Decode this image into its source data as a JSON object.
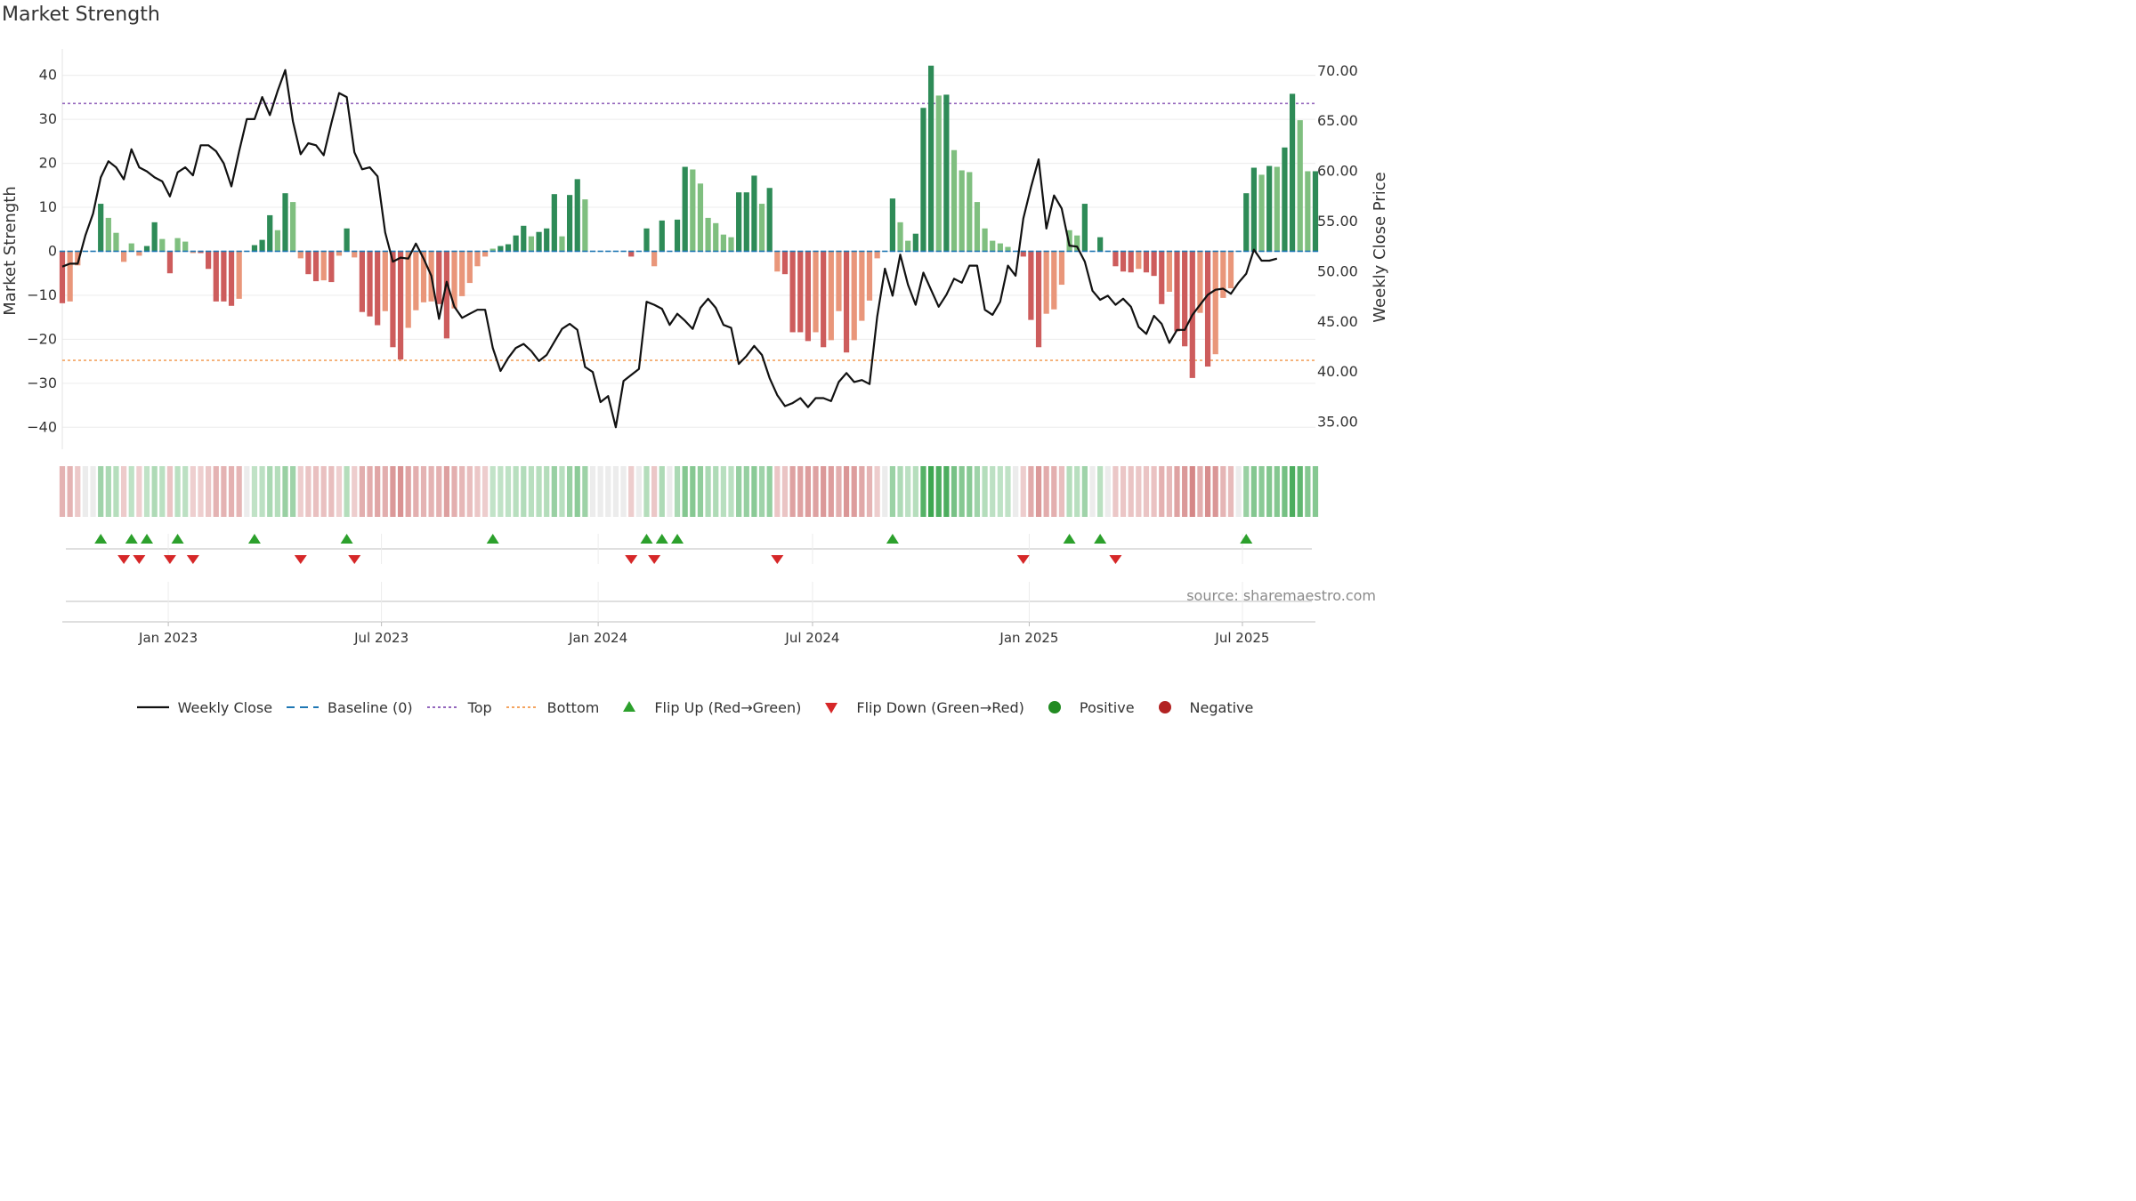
{
  "title": "Market Strength",
  "source": "source: sharemaestro.com",
  "colors": {
    "pos_dark": "#2e8b57",
    "pos_light": "#7fbf7f",
    "neg_dark": "#cd5c5c",
    "neg_light": "#e9967a",
    "baseline": "#1f77b4",
    "top": "#9467bd",
    "bottom": "#f4a460",
    "close": "#111111",
    "flip_up": "#2ca02c",
    "flip_down": "#d62728",
    "positive": "#228b22",
    "negative": "#b22222"
  },
  "legend": [
    {
      "key": "close",
      "label": "Weekly Close"
    },
    {
      "key": "baseline",
      "label": "Baseline (0)"
    },
    {
      "key": "top",
      "label": "Top"
    },
    {
      "key": "bottom",
      "label": "Bottom"
    },
    {
      "key": "flip_up",
      "label": "Flip Up (Red→Green)"
    },
    {
      "key": "flip_down",
      "label": "Flip Down (Green→Red)"
    },
    {
      "key": "positive",
      "label": "Positive"
    },
    {
      "key": "negative",
      "label": "Negative"
    }
  ],
  "chart_data": {
    "type": "bar",
    "title": "Market Strength",
    "ylabel": "Market Strength",
    "ylabel_right": "Weekly Close Price",
    "ylim": [
      -45,
      46
    ],
    "ylim_right": [
      32.3,
      72.2
    ],
    "yticks": [
      -40,
      -30,
      -20,
      -10,
      0,
      10,
      20,
      30,
      40
    ],
    "yticks_right": [
      "35.00",
      "40.00",
      "45.00",
      "50.00",
      "55.00",
      "60.00",
      "65.00",
      "70.00"
    ],
    "x_start": "2022-10-03",
    "x_end": "2025-09-01",
    "xtick_labels": [
      {
        "label": "Jan 2023",
        "date": "2023-01-01"
      },
      {
        "label": "Jul 2023",
        "date": "2023-07-01"
      },
      {
        "label": "Jan 2024",
        "date": "2024-01-01"
      },
      {
        "label": "Jul 2024",
        "date": "2024-07-01"
      },
      {
        "label": "Jan 2025",
        "date": "2025-01-01"
      },
      {
        "label": "Jul 2025",
        "date": "2025-07-01"
      }
    ],
    "top_threshold": 33.6,
    "bottom_threshold": -24.8,
    "strength": [
      -11.8,
      -11.4,
      -3.2,
      0,
      0,
      10.8,
      7.6,
      4.2,
      -2.4,
      1.8,
      -1,
      1.2,
      6.6,
      2.8,
      -5,
      3,
      2.2,
      -0.4,
      -0.4,
      -4,
      -11.4,
      -11.4,
      -12.4,
      -10.8,
      0,
      1.4,
      2.6,
      8.2,
      4.8,
      13.2,
      11.2,
      -1.6,
      -5.2,
      -6.8,
      -6.6,
      -7,
      -1,
      5.2,
      -1.4,
      -13.8,
      -14.8,
      -16.8,
      -13.6,
      -21.8,
      -24.6,
      -17.4,
      -13.4,
      -11.6,
      -11.4,
      -12,
      -19.8,
      -13,
      -10.2,
      -7.2,
      -3.4,
      -1.2,
      0.6,
      1.2,
      1.6,
      3.6,
      5.8,
      3.4,
      4.4,
      5.2,
      13,
      3.4,
      12.8,
      16.4,
      11.8,
      0,
      0,
      0,
      0,
      0,
      -1.2,
      0,
      5.2,
      -3.4,
      7,
      0,
      7.2,
      19.2,
      18.6,
      15.4,
      7.6,
      6.4,
      3.8,
      3.2,
      13.4,
      13.4,
      17.2,
      10.8,
      14.4,
      -4.6,
      -5.2,
      -18.4,
      -18.4,
      -20.4,
      -18.4,
      -21.8,
      -20.2,
      -13.6,
      -23,
      -20.2,
      -15.8,
      -11.2,
      -1.6,
      0,
      12,
      6.6,
      2.4,
      4,
      32.6,
      42.2,
      35.4,
      35.6,
      23,
      18.4,
      18,
      11.2,
      5.2,
      2.4,
      1.8,
      1,
      0,
      -1.2,
      -15.6,
      -21.8,
      -14.2,
      -13.2,
      -7.6,
      4.8,
      3.6,
      10.8,
      0,
      3.2,
      0,
      -3.4,
      -4.6,
      -4.8,
      -4,
      -4.8,
      -5.6,
      -12,
      -9.2,
      -18.2,
      -21.6,
      -28.8,
      -14,
      -26.2,
      -23.4,
      -10.6,
      -8.4,
      0,
      13.2,
      19,
      17.4,
      19.4,
      19.2,
      23.6,
      35.8,
      29.8,
      18.2,
      18.2
    ],
    "close": [
      50.5,
      50.8,
      50.8,
      53.6,
      55.8,
      59.4,
      61,
      60.4,
      59.2,
      62.2,
      60.4,
      60,
      59.4,
      59,
      57.5,
      59.9,
      60.4,
      59.6,
      62.6,
      62.6,
      62,
      60.8,
      58.5,
      62,
      65.2,
      65.2,
      67.4,
      65.6,
      68,
      70.1,
      65,
      61.7,
      62.8,
      62.6,
      61.6,
      64.8,
      67.8,
      67.4,
      61.9,
      60.2,
      60.4,
      59.5,
      53.9,
      51,
      51.4,
      51.3,
      52.8,
      51.3,
      49.6,
      45.3,
      49,
      46.5,
      45.4,
      45.8,
      46.2,
      46.2,
      42.4,
      40.1,
      41.4,
      42.4,
      42.8,
      42.1,
      41.1,
      41.7,
      43,
      44.3,
      44.8,
      44.2,
      40.5,
      40,
      37,
      37.6,
      34.5,
      39.1,
      39.7,
      40.3,
      47,
      46.7,
      46.3,
      44.7,
      45.8,
      45.1,
      44.3,
      46.4,
      47.3,
      46.4,
      44.7,
      44.4,
      40.8,
      41.6,
      42.6,
      41.7,
      39.4,
      37.7,
      36.6,
      36.9,
      37.4,
      36.5,
      37.4,
      37.4,
      37.1,
      39,
      39.9,
      39,
      39.2,
      38.8,
      45.5,
      50.3,
      47.6,
      51.7,
      48.7,
      46.7,
      49.9,
      48.2,
      46.5,
      47.7,
      49.3,
      48.9,
      50.6,
      50.6,
      46.2,
      45.7,
      47,
      50.6,
      49.6,
      55.3,
      58.4,
      61.2,
      54.3,
      57.6,
      56.3,
      52.6,
      52.5,
      51,
      48.1,
      47.2,
      47.6,
      46.7,
      47.3,
      46.5,
      44.5,
      43.8,
      45.6,
      44.8,
      42.9,
      44.2,
      44.2,
      45.7,
      46.7,
      47.7,
      48.2,
      48.3,
      47.8,
      48.9,
      49.8,
      52.2,
      51.1,
      51.1,
      51.3
    ]
  }
}
